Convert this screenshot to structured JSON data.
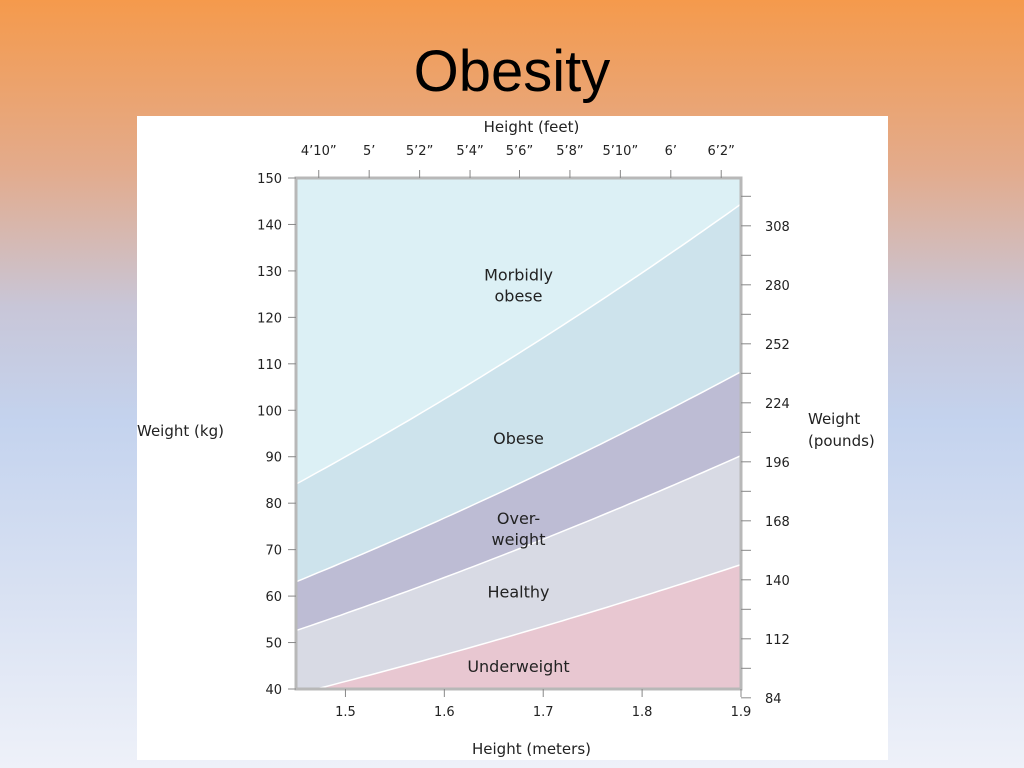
{
  "title": "Obesity",
  "chart_data": {
    "type": "area",
    "x_label_bottom": "Height (meters)",
    "x_label_top": "Height (feet)",
    "y_label_left": "Weight (kg)",
    "y_label_right": "Weight (pounds)",
    "xlim": [
      1.45,
      1.9
    ],
    "ylim": [
      40,
      150
    ],
    "bottom_ticks": [
      1.5,
      1.6,
      1.7,
      1.8,
      1.9
    ],
    "top_ticks": [
      {
        "label": "4’10”",
        "m": 1.473
      },
      {
        "label": "5’",
        "m": 1.524
      },
      {
        "label": "5’2”",
        "m": 1.575
      },
      {
        "label": "5’4”",
        "m": 1.626
      },
      {
        "label": "5’6”",
        "m": 1.676
      },
      {
        "label": "5’8”",
        "m": 1.727
      },
      {
        "label": "5’10”",
        "m": 1.778
      },
      {
        "label": "6’",
        "m": 1.829
      },
      {
        "label": "6’2”",
        "m": 1.88
      }
    ],
    "left_ticks": [
      40,
      50,
      60,
      70,
      80,
      90,
      100,
      110,
      120,
      130,
      140,
      150
    ],
    "right_ticks": [
      84,
      112,
      140,
      168,
      196,
      224,
      252,
      280,
      308
    ],
    "boundaries_bmi": [
      18.5,
      25,
      30,
      40
    ],
    "regions": [
      {
        "name": "Underweight",
        "label": [
          "Underweight"
        ],
        "color": "#e8c7d1",
        "label_x": 1.675,
        "label_y": 45
      },
      {
        "name": "Healthy",
        "label": [
          "Healthy"
        ],
        "color": "#d8dae4",
        "label_x": 1.675,
        "label_y": 61
      },
      {
        "name": "Overweight",
        "label": [
          "Over-",
          "weight"
        ],
        "color": "#bdbcd4",
        "label_x": 1.675,
        "label_y": 74.5
      },
      {
        "name": "Obese",
        "label": [
          "Obese"
        ],
        "color": "#cde3ec",
        "label_x": 1.675,
        "label_y": 94
      },
      {
        "name": "Morbidly obese",
        "label": [
          "Morbidly",
          "obese"
        ],
        "color": "#dcf0f5",
        "label_x": 1.675,
        "label_y": 127
      }
    ]
  }
}
